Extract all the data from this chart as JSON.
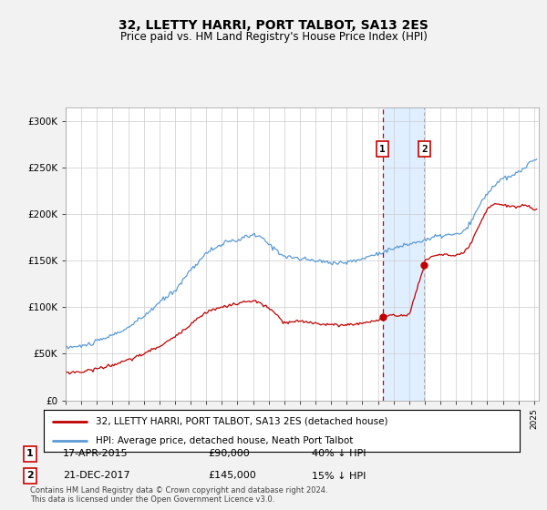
{
  "title": "32, LLETTY HARRI, PORT TALBOT, SA13 2ES",
  "subtitle": "Price paid vs. HM Land Registry's House Price Index (HPI)",
  "hpi_color": "#5b9bd5",
  "price_color": "#c00000",
  "background_color": "#f2f2f2",
  "plot_bg": "#ffffff",
  "ylabel_ticks": [
    "£0",
    "£50K",
    "£100K",
    "£150K",
    "£200K",
    "£250K",
    "£300K"
  ],
  "ytick_values": [
    0,
    50000,
    100000,
    150000,
    200000,
    250000,
    300000
  ],
  "ylim": [
    0,
    315000
  ],
  "xlim_start": 1995.0,
  "xlim_end": 2025.3,
  "transaction1": {
    "date": 2015.29,
    "price": 90000,
    "label": "1",
    "pct": "40% ↓ HPI",
    "date_str": "17-APR-2015",
    "price_str": "£90,000"
  },
  "transaction2": {
    "date": 2017.97,
    "price": 145000,
    "label": "2",
    "pct": "15% ↓ HPI",
    "date_str": "21-DEC-2017",
    "price_str": "£145,000"
  },
  "legend_line1": "32, LLETTY HARRI, PORT TALBOT, SA13 2ES (detached house)",
  "legend_line2": "HPI: Average price, detached house, Neath Port Talbot",
  "footnote": "Contains HM Land Registry data © Crown copyright and database right 2024.\nThis data is licensed under the Open Government Licence v3.0.",
  "shade_start": 2015.29,
  "shade_end": 2017.97
}
